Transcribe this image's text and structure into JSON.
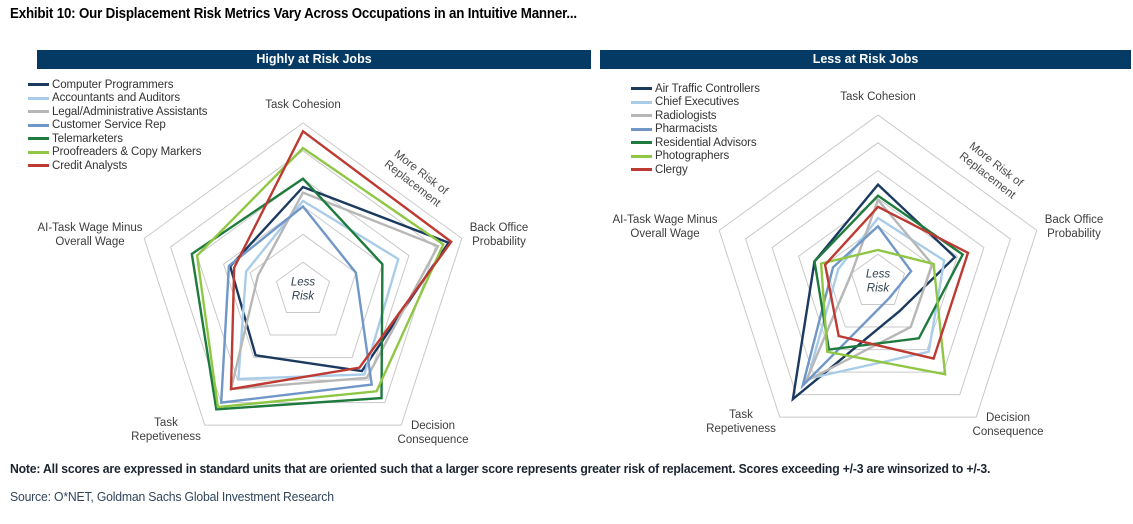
{
  "exhibit_title": "Exhibit 10: Our Displacement Risk Metrics Vary Across Occupations in an Intuitive Manner...",
  "note": "Note: All scores are expressed in standard units that are oriented such that a larger score represents greater risk of replacement. Scores exceeding +/-3 are winsorized to +/-3.",
  "source": "Source: O*NET, Goldman Sachs Global Investment Research",
  "colors": {
    "header_bg": "#053a64",
    "header_text": "#ffffff",
    "grid": "#c9c9c9",
    "axis_label": "#3d3d3d",
    "annotation": "#4a4a4a",
    "center_label": "#2f3e4e"
  },
  "chart_data": [
    {
      "type": "radar",
      "title": "Highly at Risk Jobs",
      "axes": [
        "Task Cohesion",
        "Back Office\nProbability",
        "Decision\nConsequence",
        "Task\nRepetiveness",
        "AI-Task Wage Minus\nOverall Wage"
      ],
      "annotation": "More Risk of\nReplacement",
      "center_label": "Less\nRisk",
      "scale": {
        "min": -3,
        "max": 3,
        "rings": 6
      },
      "legend_position": "top-left",
      "series": [
        {
          "name": "Computer Programmers",
          "color": "#1b3a60",
          "values": [
            0.7,
            2.5,
            0.6,
            -0.1,
            -0.25
          ]
        },
        {
          "name": "Accountants and Auditors",
          "color": "#a9cde9",
          "values": [
            0.2,
            0.6,
            0.75,
            0.95,
            -0.85
          ]
        },
        {
          "name": "Legal/Administrative Assistants",
          "color": "#b7b7b7",
          "values": [
            0.5,
            2.1,
            0.9,
            1.4,
            -1.3
          ]
        },
        {
          "name": "Customer Service Rep",
          "color": "#7097c8",
          "values": [
            0.0,
            -1.0,
            1.2,
            2.0,
            -0.2
          ]
        },
        {
          "name": "Telemarketers",
          "color": "#1e7b3d",
          "values": [
            1.0,
            0.0,
            1.8,
            2.3,
            1.2
          ]
        },
        {
          "name": "Proofreaders & Copy Markers",
          "color": "#8fc745",
          "values": [
            2.1,
            2.3,
            1.5,
            2.2,
            1.0
          ]
        },
        {
          "name": "Credit Analysts",
          "color": "#bd3a32",
          "values": [
            2.7,
            2.6,
            0.45,
            1.4,
            -0.4
          ]
        }
      ]
    },
    {
      "type": "radar",
      "title": "Less at Risk Jobs",
      "axes": [
        "Task Cohesion",
        "Back Office\nProbability",
        "Decision\nConsequence",
        "Task\nRepetiveness",
        "AI-Task Wage Minus\nOverall Wage"
      ],
      "annotation": "More Risk of\nReplacement",
      "center_label": "Less\nRisk",
      "scale": {
        "min": -3,
        "max": 3,
        "rings": 6
      },
      "legend_position": "top-left",
      "series": [
        {
          "name": "Air Traffic Controllers",
          "color": "#1b3a60",
          "values": [
            0.5,
            -0.1,
            -1.7,
            2.2,
            -0.6
          ]
        },
        {
          "name": "Chief Executives",
          "color": "#a9cde9",
          "values": [
            -0.7,
            -0.5,
            0.1,
            1.3,
            -1.5
          ]
        },
        {
          "name": "Radiologists",
          "color": "#b7b7b7",
          "values": [
            -0.05,
            -0.95,
            -1.0,
            1.4,
            -2.0
          ]
        },
        {
          "name": "Pharmacists",
          "color": "#7097c8",
          "values": [
            -1.0,
            -1.75,
            -2.3,
            1.6,
            -1.3
          ]
        },
        {
          "name": "Residential Advisors",
          "color": "#1e7b3d",
          "values": [
            0.1,
            0.2,
            -0.5,
            0.0,
            -0.6
          ]
        },
        {
          "name": "Photographers",
          "color": "#8fc745",
          "values": [
            -1.85,
            -0.9,
            1.1,
            0.1,
            -0.85
          ]
        },
        {
          "name": "Clergy",
          "color": "#bd3a32",
          "values": [
            -0.3,
            0.4,
            0.4,
            -0.6,
            -1.0
          ]
        }
      ]
    }
  ]
}
